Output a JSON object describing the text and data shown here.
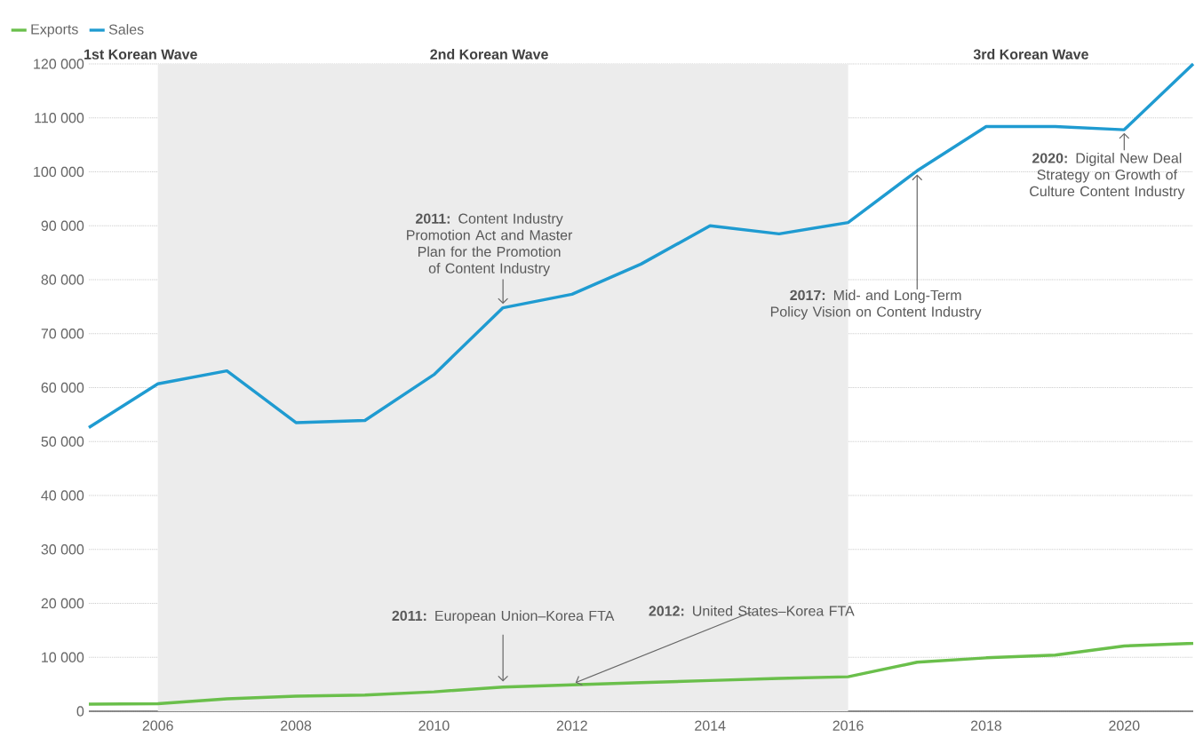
{
  "chart_data": {
    "type": "line",
    "x": [
      2005,
      2006,
      2007,
      2008,
      2009,
      2010,
      2011,
      2012,
      2013,
      2014,
      2015,
      2016,
      2017,
      2018,
      2019,
      2020,
      2021
    ],
    "series": [
      {
        "name": "Exports",
        "color": "#6abf4b",
        "values": [
          1300,
          1400,
          2300,
          2800,
          3000,
          3600,
          4500,
          4900,
          5300,
          5700,
          6100,
          6400,
          9100,
          9900,
          10400,
          12100,
          12600
        ]
      },
      {
        "name": "Sales",
        "color": "#1f9bd1",
        "values": [
          52600,
          60700,
          63100,
          53500,
          53900,
          62400,
          74800,
          77300,
          82900,
          90000,
          88500,
          90600,
          100200,
          108400,
          108400,
          107800,
          120000
        ]
      }
    ],
    "xlim": [
      2005,
      2021
    ],
    "ylim": [
      0,
      120000
    ],
    "xticks": [
      2006,
      2008,
      2010,
      2012,
      2014,
      2016,
      2018,
      2020
    ],
    "yticks": [
      {
        "value": 0,
        "label": "0"
      },
      {
        "value": 10000,
        "label": "10 000"
      },
      {
        "value": 20000,
        "label": "20 000"
      },
      {
        "value": 30000,
        "label": "30 000"
      },
      {
        "value": 40000,
        "label": "40 000"
      },
      {
        "value": 50000,
        "label": "50 000"
      },
      {
        "value": 60000,
        "label": "60 000"
      },
      {
        "value": 70000,
        "label": "70 000"
      },
      {
        "value": 80000,
        "label": "80 000"
      },
      {
        "value": 90000,
        "label": "90 000"
      },
      {
        "value": 100000,
        "label": "100 000"
      },
      {
        "value": 110000,
        "label": "110 000"
      },
      {
        "value": 120000,
        "label": "120 000"
      }
    ],
    "bands": [
      {
        "axis": "x",
        "from": 2006,
        "to": 2016,
        "label": "2nd Korean Wave",
        "color": "#ececec"
      }
    ],
    "annotations": [
      {
        "text": "**2011:** Content Industry Promotion Act and Master Plan for the Promotion of Content Industry",
        "x": 2011,
        "y": 74800
      },
      {
        "text": "**2017:** Mid- and Long-Term Policy Vision on Content Industry",
        "x": 2017,
        "y": 100200
      },
      {
        "text": "**2020:** Digital New Deal Strategy on Growth of Culture Content Industry",
        "x": 2020,
        "y": 107800
      },
      {
        "text": "**2011:** European Union–Korea FTA",
        "x": 2011,
        "y": 4500
      },
      {
        "text": "**2012:** United States–Korea FTA",
        "x": 2012,
        "y": 4900
      },
      "1st Korean Wave",
      "3rd Korean Wave"
    ],
    "grid": "y",
    "legend": "top left",
    "line_style": "solid"
  }
}
